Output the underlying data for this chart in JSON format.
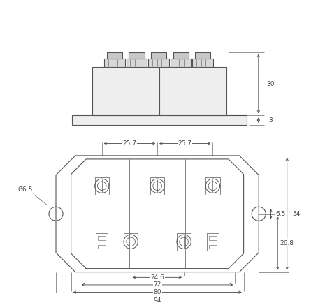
{
  "line_color": "#555555",
  "dim_color": "#444444",
  "bg_color": "#ffffff",
  "font_size": 6.5,
  "fig_width": 4.56,
  "fig_height": 4.34,
  "dims": {
    "dim_30": "30",
    "dim_3": "3",
    "dim_94": "94",
    "dim_80": "80",
    "dim_72": "72",
    "dim_24_6": "24.6",
    "dim_25_7a": "25.7",
    "dim_25_7b": "25.7",
    "dim_54": "54",
    "dim_26_8": "26.8",
    "dim_6_5": "6.5",
    "dim_phi_6_5": "Ø6.5"
  }
}
